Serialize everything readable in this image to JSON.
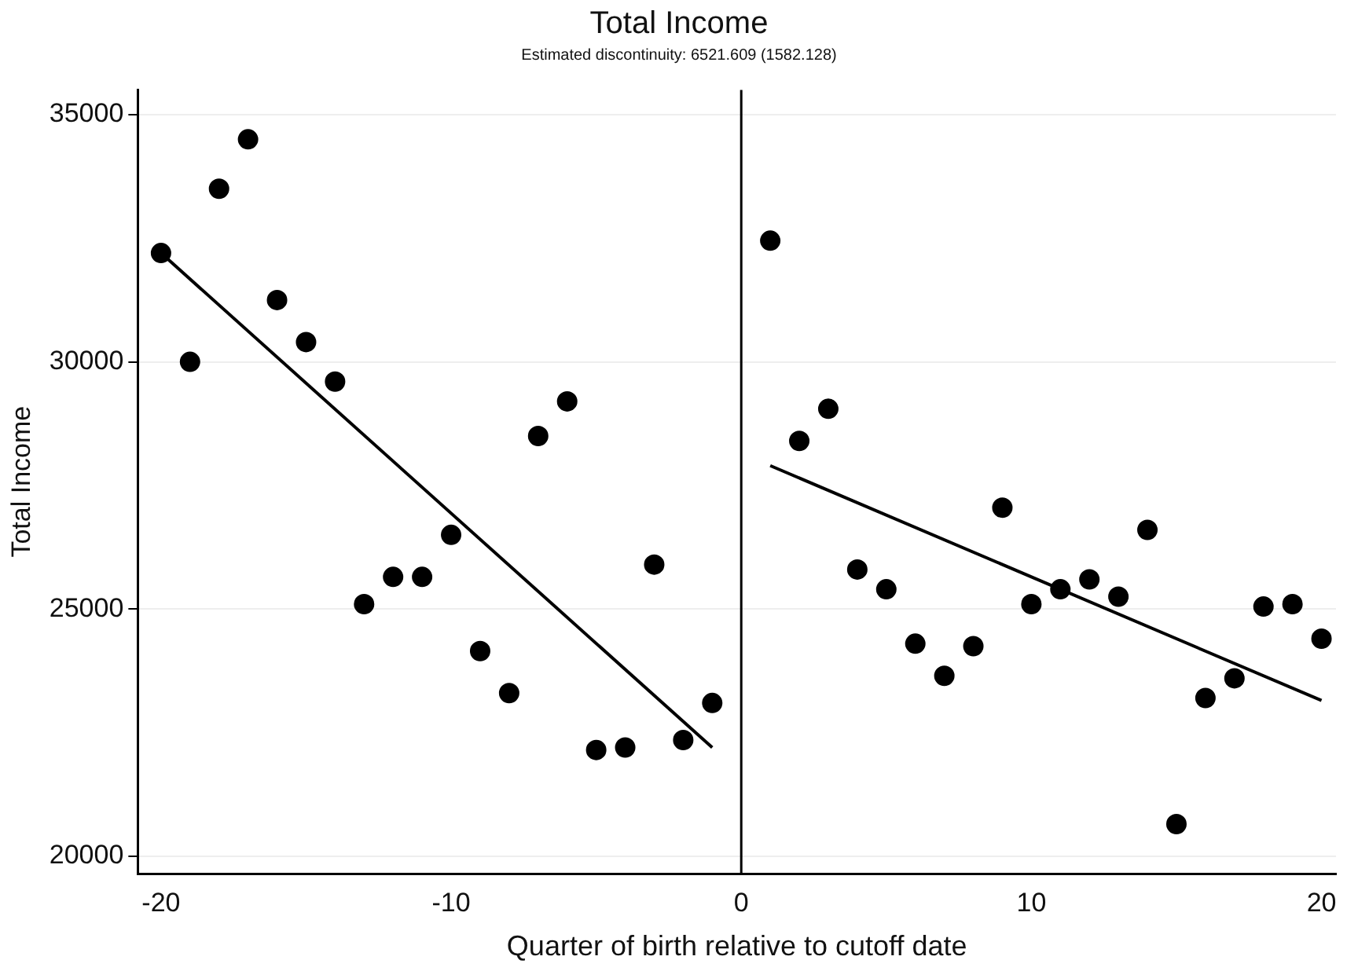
{
  "chart_data": {
    "type": "scatter",
    "title": "Total Income",
    "subtitle": "Estimated discontinuity: 6521.609 (1582.128)",
    "xlabel": "Quarter of birth relative to cutoff date",
    "ylabel": "Total Income",
    "xlim": [
      -20.8,
      20.5
    ],
    "xticks": [
      -20,
      -10,
      0,
      10,
      20
    ],
    "ylim": [
      19650,
      35500
    ],
    "yticks": [
      20000,
      25000,
      30000,
      35000
    ],
    "grid": "y",
    "marker": "circle",
    "series": [
      {
        "color": "#000000",
        "x": [
          -20,
          -19,
          -18,
          -17,
          -16,
          -15,
          -14,
          -13,
          -12,
          -11,
          -10,
          -9,
          -8,
          -7,
          -6,
          -5,
          -4,
          -3,
          -2,
          -1,
          1,
          2,
          3,
          4,
          5,
          6,
          7,
          8,
          9,
          10,
          11,
          12,
          13,
          14,
          15,
          16,
          17,
          18,
          19,
          20
        ],
        "values": [
          32200,
          30000,
          33500,
          34500,
          31250,
          30400,
          29600,
          25100,
          25650,
          25650,
          26500,
          24150,
          23300,
          28500,
          29200,
          22150,
          22200,
          25900,
          22350,
          23100,
          32450,
          28400,
          29050,
          25800,
          25400,
          24300,
          23650,
          24250,
          27050,
          25100,
          25400,
          25600,
          25250,
          26600,
          20650,
          23200,
          23600,
          25050,
          25100,
          24400
        ]
      },
      {
        "type": "line",
        "color": "#000000",
        "marker": "none",
        "x": [
          -20,
          -1
        ],
        "values": [
          32200,
          22200
        ]
      },
      {
        "type": "line",
        "color": "#000000",
        "marker": "none",
        "x": [
          1,
          20
        ],
        "values": [
          27900,
          23150
        ]
      }
    ],
    "ref_lines": [
      {
        "axis": "x",
        "value": 0,
        "color": "#000000"
      }
    ]
  }
}
